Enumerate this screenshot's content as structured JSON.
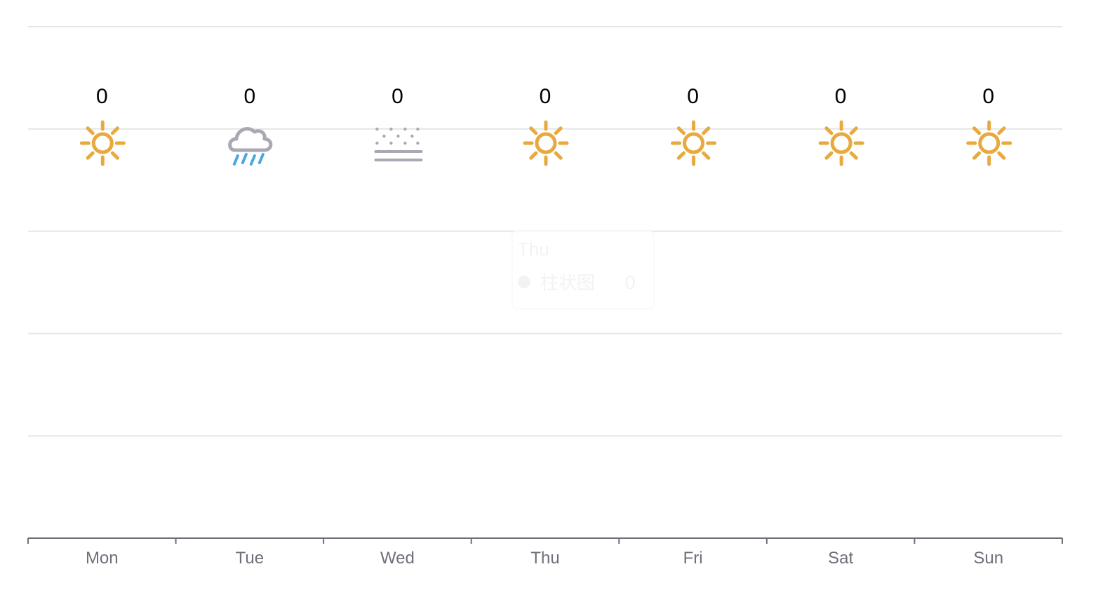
{
  "chart_data": {
    "type": "bar",
    "categories": [
      "Mon",
      "Tue",
      "Wed",
      "Thu",
      "Fri",
      "Sat",
      "Sun"
    ],
    "series": [
      {
        "name": "柱状图",
        "values": [
          0,
          0,
          0,
          0,
          0,
          0,
          0
        ],
        "weather_icons": [
          "sun-icon",
          "rain-icon",
          "fog-icon",
          "sun-icon",
          "sun-icon",
          "sun-icon",
          "sun-icon"
        ]
      }
    ],
    "title": "",
    "xlabel": "",
    "ylabel": "",
    "ylim": [
      0,
      5
    ],
    "grid": true,
    "tooltip": {
      "category": "Thu",
      "series_name": "柱状图",
      "value": "0"
    }
  },
  "colors": {
    "sun": "#e8a93f",
    "cloud": "#a9a9b3",
    "rain": "#4aa8df",
    "fog": "#a9a9b3"
  }
}
